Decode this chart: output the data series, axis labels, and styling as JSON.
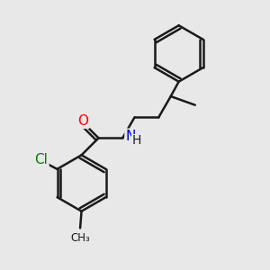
{
  "bg_color": "#e8e8e8",
  "bond_color": "#1a1a1a",
  "bond_width": 1.8,
  "atom_colors": {
    "O": "#ff0000",
    "N": "#0000cc",
    "Cl": "#008000",
    "C": "#1a1a1a",
    "H": "#1a1a1a"
  },
  "font_size_atom": 11,
  "font_size_small": 9
}
